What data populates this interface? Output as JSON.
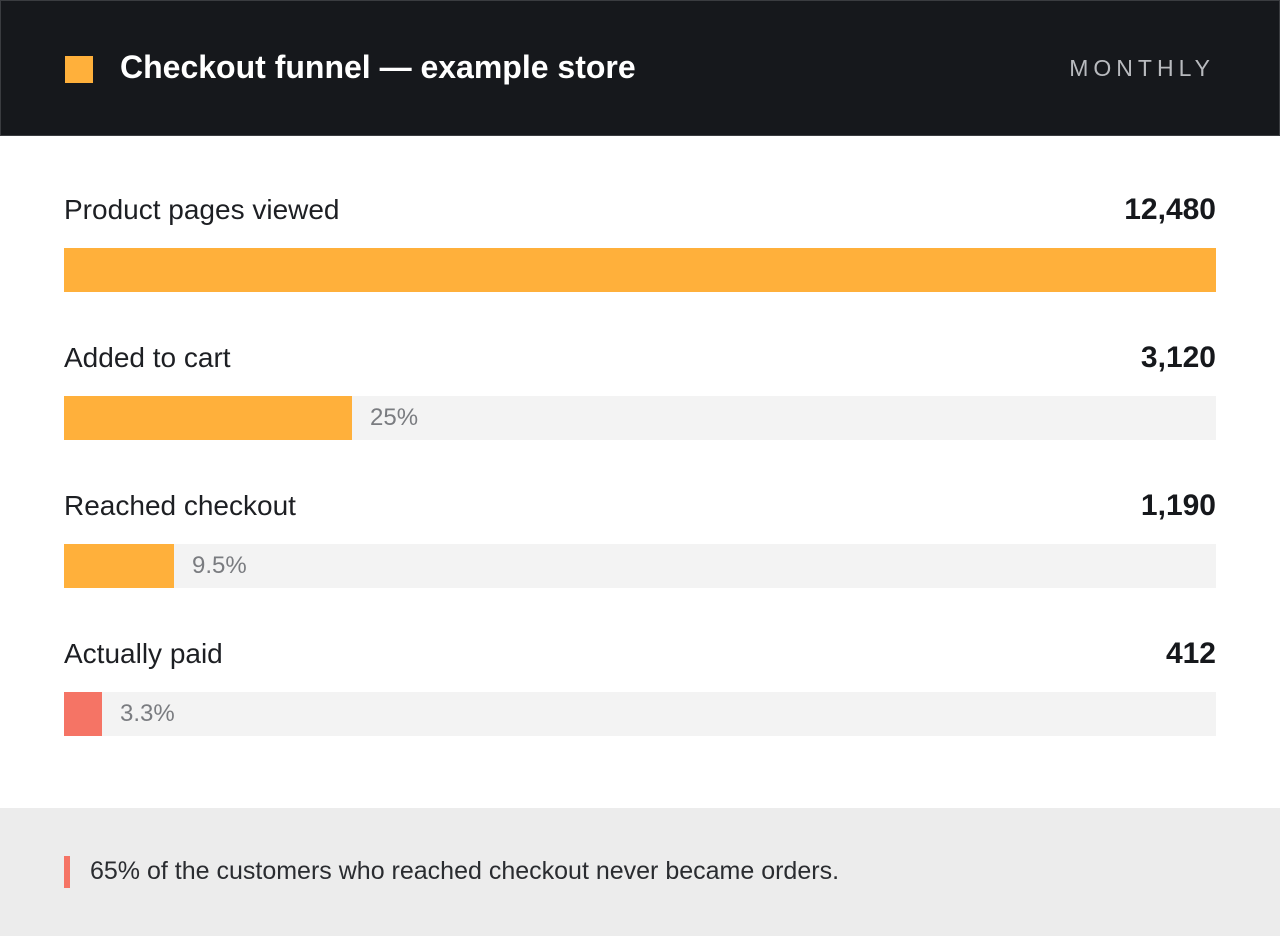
{
  "header": {
    "title": "Checkout funnel — example store",
    "period": "MONTHLY",
    "accent_color": "#ffb03b"
  },
  "chart_data": {
    "type": "bar",
    "orientation": "horizontal-funnel",
    "categories": [
      "Product pages viewed",
      "Added to cart",
      "Reached checkout",
      "Actually paid"
    ],
    "values": [
      12480,
      3120,
      1190,
      412
    ],
    "value_labels": [
      "12,480",
      "3,120",
      "1,190",
      "412"
    ],
    "percent_labels": [
      "",
      "25%",
      "9.5%",
      "3.3%"
    ],
    "max": 12480,
    "bar_color": "#ffb03b",
    "highlight_color": "#f57465",
    "highlight_index": 3
  },
  "footer": {
    "note": "65% of the customers who reached checkout never became orders.",
    "marker_color": "#f57465"
  }
}
